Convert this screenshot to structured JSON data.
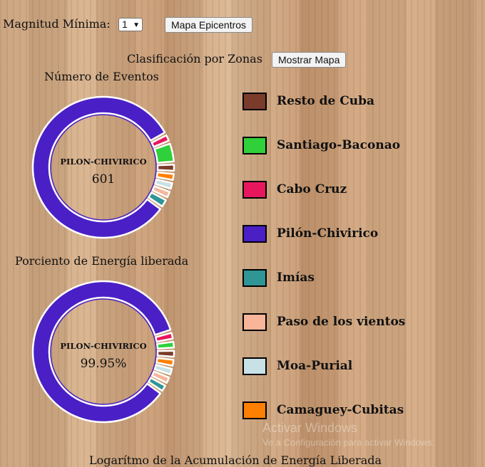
{
  "controls": {
    "magnitud_label": "Magnitud Mínima:",
    "magnitud_value": "1",
    "mapa_epicentros": "Mapa Epicentros",
    "clasificacion_label": "Clasificación por Zonas",
    "mostrar_mapa": "Mostrar Mapa"
  },
  "charts": {
    "eventos_title": "Número de Eventos",
    "eventos_center_name": "PILON-CHIVIRICO",
    "eventos_center_value": "601",
    "energia_title": "Porciento de Energía liberada",
    "energia_center_name": "PILON-CHIVIRICO",
    "energia_center_value": "99.95%",
    "bottom_title": "Logarítmo de la Acumulación de Energía Liberada"
  },
  "legend": [
    {
      "label": "Resto de Cuba",
      "color": "#7a3b2a"
    },
    {
      "label": "Santiago-Baconao",
      "color": "#2fd03a"
    },
    {
      "label": "Cabo Cruz",
      "color": "#e8175d"
    },
    {
      "label": "Pilón-Chivirico",
      "color": "#4a1fc6"
    },
    {
      "label": "Imías",
      "color": "#2f9595"
    },
    {
      "label": "Paso de los vientos",
      "color": "#f8b59a"
    },
    {
      "label": "Moa-Purial",
      "color": "#c8e1e6"
    },
    {
      "label": "Camaguey-Cubitas",
      "color": "#ff8000"
    }
  ],
  "watermark": {
    "line1": "Activar Windows",
    "line2": "Ve a Configuración para activar Windows."
  },
  "chart_data": [
    {
      "type": "pie",
      "title": "Número de Eventos",
      "series": [
        {
          "values": [
            {
              "label": "Pilón-Chivirico",
              "value": 601,
              "color": "#4a1fc6"
            },
            {
              "label": "Cabo Cruz",
              "value": 9,
              "color": "#e8175d"
            },
            {
              "label": "Santiago-Baconao",
              "value": 30,
              "color": "#2fd03a"
            },
            {
              "label": "Resto de Cuba",
              "value": 10,
              "color": "#7a3b2a"
            },
            {
              "label": "Camaguey-Cubitas",
              "value": 10,
              "color": "#ff8000"
            },
            {
              "label": "Moa-Purial",
              "value": 4,
              "color": "#c8e1e6"
            },
            {
              "label": "Paso de los vientos",
              "value": 9,
              "color": "#f8b59a"
            },
            {
              "label": "Imías",
              "value": 12,
              "color": "#2f9595"
            }
          ]
        }
      ],
      "center_label": "PILON-CHIVIRICO",
      "center_value": "601"
    },
    {
      "type": "pie",
      "title": "Porciento de Energía liberada",
      "series": [
        {
          "values": [
            {
              "label": "Pilón-Chivirico",
              "value": 99.95,
              "color": "#4a1fc6"
            },
            {
              "label": "Cabo Cruz",
              "value": 0.007,
              "color": "#e8175d"
            },
            {
              "label": "Santiago-Baconao",
              "value": 0.007,
              "color": "#2fd03a"
            },
            {
              "label": "Resto de Cuba",
              "value": 0.007,
              "color": "#7a3b2a"
            },
            {
              "label": "Camaguey-Cubitas",
              "value": 0.007,
              "color": "#ff8000"
            },
            {
              "label": "Moa-Purial",
              "value": 0.007,
              "color": "#c8e1e6"
            },
            {
              "label": "Paso de los vientos",
              "value": 0.007,
              "color": "#f8b59a"
            },
            {
              "label": "Imías",
              "value": 0.007,
              "color": "#2f9595"
            }
          ]
        }
      ],
      "center_label": "PILON-CHIVIRICO",
      "center_value": "99.95%"
    }
  ]
}
